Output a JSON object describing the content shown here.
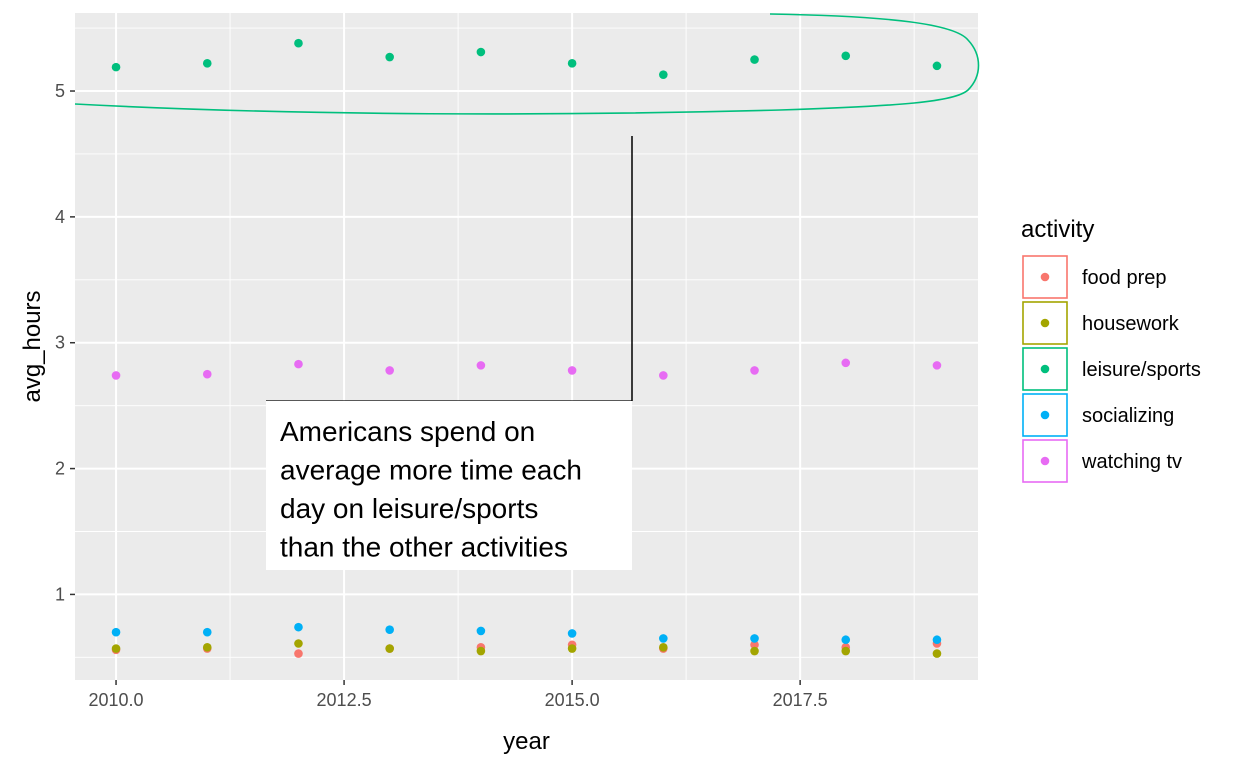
{
  "chart_data": {
    "type": "scatter",
    "xlabel": "year",
    "ylabel": "avg_hours",
    "xlim": [
      2009.55,
      2019.45
    ],
    "ylim": [
      0.32,
      5.62
    ],
    "x_ticks": [
      2010.0,
      2012.5,
      2015.0,
      2017.5
    ],
    "x_tick_labels": [
      "2010.0",
      "2012.5",
      "2015.0",
      "2017.5"
    ],
    "y_ticks": [
      1,
      2,
      3,
      4,
      5
    ],
    "y_tick_labels": [
      "1",
      "2",
      "3",
      "4",
      "5"
    ],
    "grid": true,
    "legend_title": "activity",
    "legend_position": "right",
    "series": [
      {
        "name": "food prep",
        "color": "#F8766D",
        "x": [
          2010,
          2011,
          2012,
          2013,
          2014,
          2015,
          2016,
          2017,
          2018,
          2019
        ],
        "y": [
          0.56,
          0.57,
          0.53,
          0.57,
          0.58,
          0.6,
          0.57,
          0.6,
          0.58,
          0.61
        ]
      },
      {
        "name": "housework",
        "color": "#A3A500",
        "x": [
          2010,
          2011,
          2012,
          2013,
          2014,
          2015,
          2016,
          2017,
          2018,
          2019
        ],
        "y": [
          0.57,
          0.58,
          0.61,
          0.57,
          0.55,
          0.57,
          0.58,
          0.55,
          0.55,
          0.53
        ]
      },
      {
        "name": "leisure/sports",
        "color": "#00BF7D",
        "x": [
          2010,
          2011,
          2012,
          2013,
          2014,
          2015,
          2016,
          2017,
          2018,
          2019
        ],
        "y": [
          5.19,
          5.22,
          5.38,
          5.27,
          5.31,
          5.22,
          5.13,
          5.25,
          5.28,
          5.2
        ]
      },
      {
        "name": "socializing",
        "color": "#00B0F6",
        "x": [
          2010,
          2011,
          2012,
          2013,
          2014,
          2015,
          2016,
          2017,
          2018,
          2019
        ],
        "y": [
          0.7,
          0.7,
          0.74,
          0.72,
          0.71,
          0.69,
          0.65,
          0.65,
          0.64,
          0.64
        ]
      },
      {
        "name": "watching tv",
        "color": "#E76BF3",
        "x": [
          2010,
          2011,
          2012,
          2013,
          2014,
          2015,
          2016,
          2017,
          2018,
          2019
        ],
        "y": [
          2.74,
          2.75,
          2.83,
          2.78,
          2.82,
          2.78,
          2.74,
          2.78,
          2.84,
          2.82
        ]
      }
    ],
    "annotation": {
      "lines": [
        "Americans spend on",
        "average more time each",
        "day on leisure/sports",
        "than the other activities"
      ]
    }
  }
}
